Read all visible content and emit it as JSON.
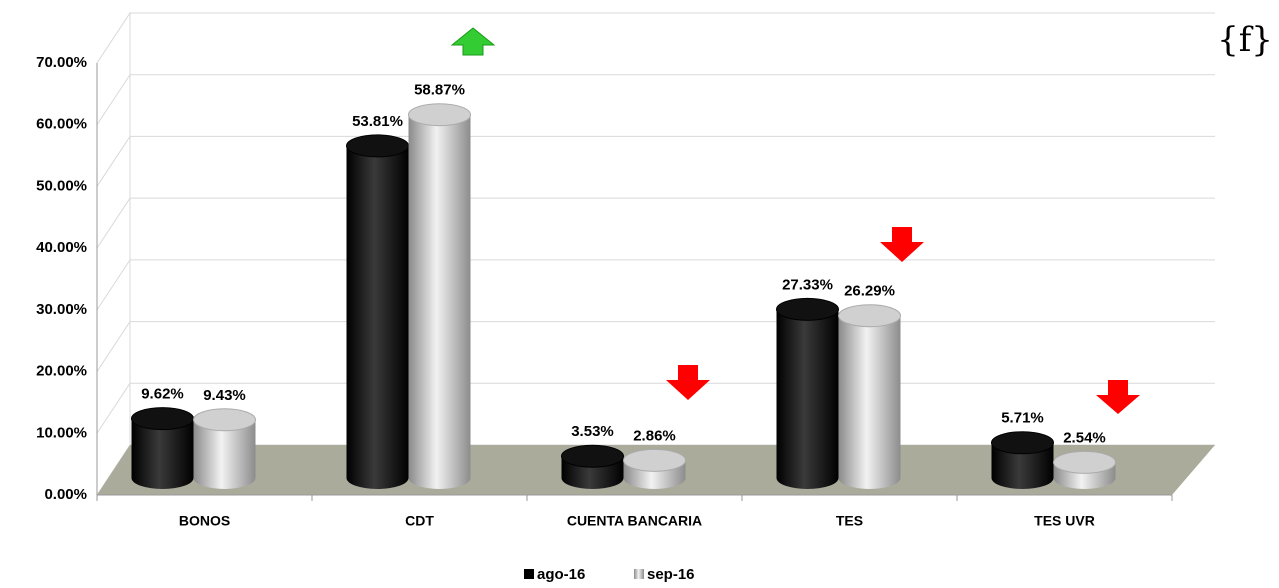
{
  "chart_data": {
    "type": "bar3d",
    "categories": [
      "BONOS",
      "CDT",
      "CUENTA BANCARIA",
      "TES",
      "TES UVR"
    ],
    "series": [
      {
        "name": "ago-16",
        "color": "#000000",
        "values": [
          9.62,
          53.81,
          3.53,
          27.33,
          5.71
        ],
        "value_labels": [
          "9.62%",
          "53.81%",
          "3.53%",
          "27.33%",
          "5.71%"
        ]
      },
      {
        "name": "sep-16",
        "color": "#bfbfbf",
        "values": [
          9.43,
          58.87,
          2.86,
          26.29,
          2.54
        ],
        "value_labels": [
          "9.43%",
          "58.87%",
          "2.86%",
          "26.29%",
          "2.54%"
        ]
      }
    ],
    "ylim": [
      0,
      70
    ],
    "yticks": [
      {
        "value": 0,
        "label": "0.00%"
      },
      {
        "value": 10,
        "label": "10.00%"
      },
      {
        "value": 20,
        "label": "20.00%"
      },
      {
        "value": 30,
        "label": "30.00%"
      },
      {
        "value": 40,
        "label": "40.00%"
      },
      {
        "value": 50,
        "label": "50.00%"
      },
      {
        "value": 60,
        "label": "60.00%"
      },
      {
        "value": 70,
        "label": "70.00%"
      }
    ],
    "grid": true,
    "legend": "bottom",
    "watermark": "{f}"
  }
}
